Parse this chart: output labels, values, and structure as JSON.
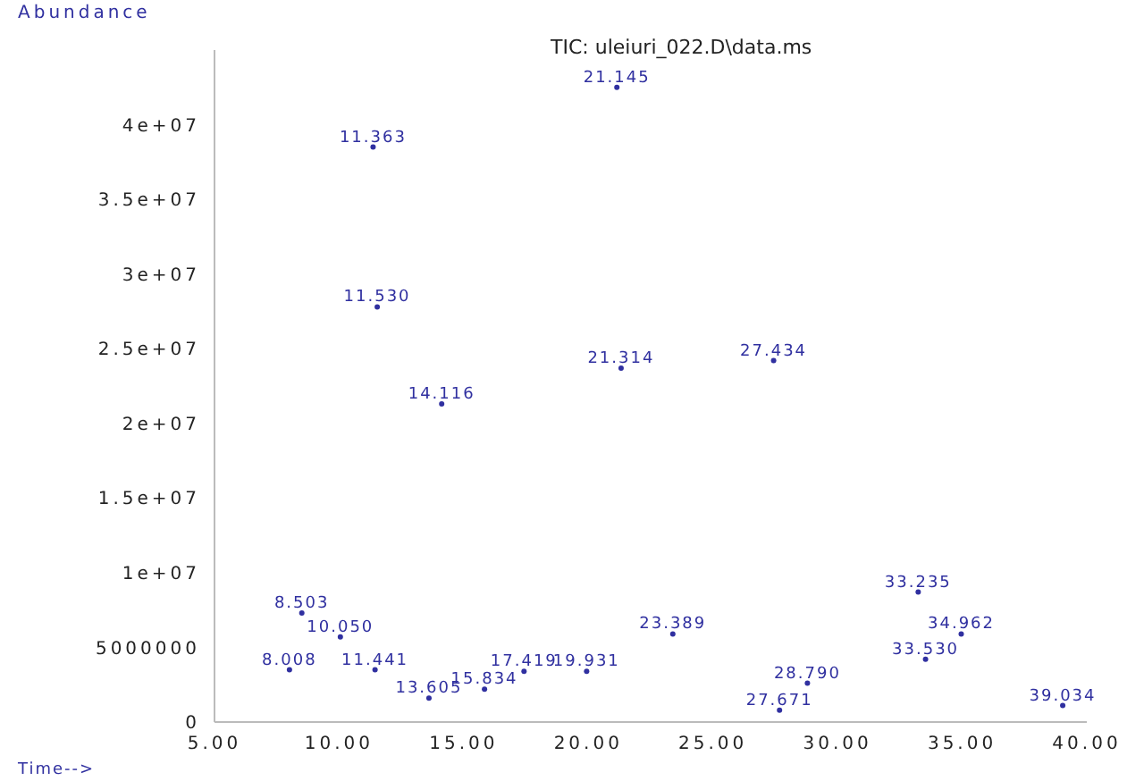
{
  "chart_data": {
    "type": "scatter",
    "title": "TIC: uleiuri_022.D\\data.ms",
    "xlabel": "Time-->",
    "ylabel": "Abundance",
    "x": [
      21.145,
      11.363,
      11.53,
      14.116,
      21.314,
      27.434,
      8.503,
      10.05,
      23.389,
      33.235,
      34.962,
      33.53,
      8.008,
      11.441,
      17.419,
      19.931,
      15.834,
      28.79,
      13.605,
      27.671,
      39.034
    ],
    "series": [
      {
        "color": "#3030a0",
        "values": [
          42500000,
          38500000,
          27800000,
          21300000,
          23700000,
          24200000,
          7300000,
          5700000,
          5900000,
          8700000,
          5900000,
          4200000,
          3500000,
          3500000,
          3400000,
          3400000,
          2200000,
          2600000,
          1600000,
          800000,
          1100000
        ]
      }
    ],
    "annotations": [
      {
        "text": "21.145",
        "x": 21.145,
        "y": 42500000
      },
      {
        "text": "11.363",
        "x": 11.363,
        "y": 38500000
      },
      {
        "text": "11.530",
        "x": 11.53,
        "y": 27800000
      },
      {
        "text": "14.116",
        "x": 14.116,
        "y": 21300000
      },
      {
        "text": "21.314",
        "x": 21.314,
        "y": 23700000
      },
      {
        "text": "27.434",
        "x": 27.434,
        "y": 24200000
      },
      {
        "text": "8.503",
        "x": 8.503,
        "y": 7300000
      },
      {
        "text": "10.050",
        "x": 10.05,
        "y": 5700000
      },
      {
        "text": "23.389",
        "x": 23.389,
        "y": 5900000
      },
      {
        "text": "33.235",
        "x": 33.235,
        "y": 8700000
      },
      {
        "text": "34.962",
        "x": 34.962,
        "y": 5900000
      },
      {
        "text": "33.530",
        "x": 33.53,
        "y": 4200000
      },
      {
        "text": "8.008",
        "x": 8.008,
        "y": 3500000
      },
      {
        "text": "11.441",
        "x": 11.441,
        "y": 3500000
      },
      {
        "text": "17.419",
        "x": 17.419,
        "y": 3400000
      },
      {
        "text": "19.931",
        "x": 19.931,
        "y": 3400000
      },
      {
        "text": "15.834",
        "x": 15.834,
        "y": 2200000
      },
      {
        "text": "28.790",
        "x": 28.79,
        "y": 2600000
      },
      {
        "text": "13.605",
        "x": 13.605,
        "y": 1600000
      },
      {
        "text": "27.671",
        "x": 27.671,
        "y": 800000
      },
      {
        "text": "39.034",
        "x": 39.034,
        "y": 1100000
      }
    ],
    "xlim": [
      5,
      40
    ],
    "xticks": [
      {
        "value": 5,
        "label": "5.00"
      },
      {
        "value": 10,
        "label": "10.00"
      },
      {
        "value": 15,
        "label": "15.00"
      },
      {
        "value": 20,
        "label": "20.00"
      },
      {
        "value": 25,
        "label": "25.00"
      },
      {
        "value": 30,
        "label": "30.00"
      },
      {
        "value": 35,
        "label": "35.00"
      },
      {
        "value": 40,
        "label": "40.00"
      }
    ],
    "ylim": [
      0,
      45000000
    ],
    "yticks": [
      0,
      5000000,
      {
        "value": 10000000,
        "label": "1e+07"
      },
      {
        "value": 15000000,
        "label": "1.5e+07"
      },
      {
        "value": 20000000,
        "label": "2e+07"
      },
      {
        "value": 25000000,
        "label": "2.5e+07"
      },
      {
        "value": 30000000,
        "label": "3e+07"
      },
      {
        "value": 35000000,
        "label": "3.5e+07"
      },
      {
        "value": 40000000,
        "label": "4e+07"
      }
    ],
    "grid": false,
    "legend": false,
    "marker": "circle"
  }
}
